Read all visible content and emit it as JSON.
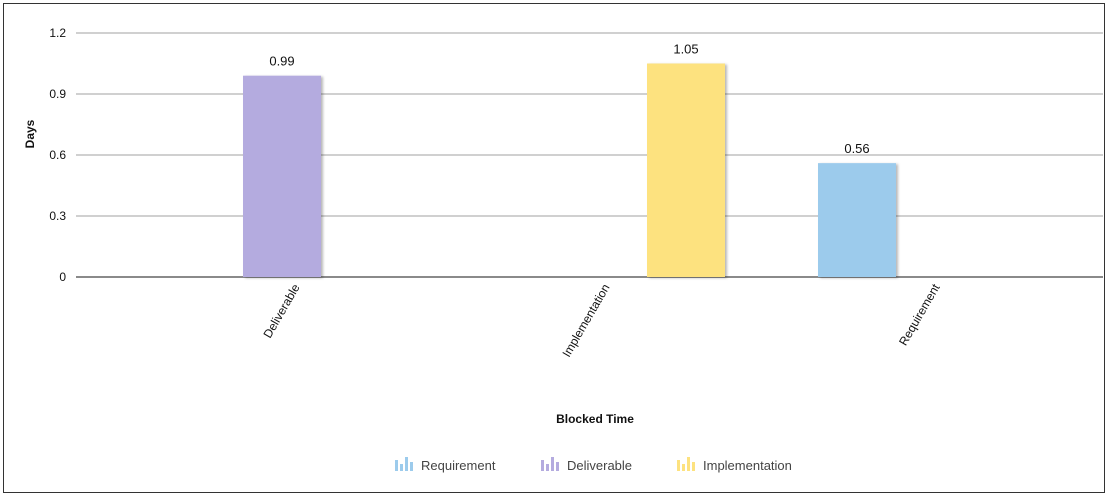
{
  "chart_data": {
    "type": "bar",
    "title": "",
    "xlabel": "Blocked Time",
    "ylabel": "Days",
    "ylim": [
      0,
      1.2
    ],
    "yticks": [
      "0",
      "0.3",
      "0.6",
      "0.9",
      "1.2"
    ],
    "ytick_values": [
      0,
      0.3,
      0.6,
      0.9,
      1.2
    ],
    "categories": [
      "Deliverable",
      "Implementation",
      "Requirement"
    ],
    "series": [
      {
        "name": "Requirement",
        "color": "#9ccbec",
        "values": [
          null,
          null,
          0.56
        ],
        "labels": [
          "",
          "",
          "0.56"
        ]
      },
      {
        "name": "Deliverable",
        "color": "#b4abdf",
        "values": [
          0.99,
          null,
          null
        ],
        "labels": [
          "0.99",
          "",
          ""
        ]
      },
      {
        "name": "Implementation",
        "color": "#fde27f",
        "values": [
          null,
          1.05,
          null
        ],
        "labels": [
          "",
          "1.05",
          ""
        ]
      }
    ],
    "grid": true,
    "legend": "bottom"
  }
}
